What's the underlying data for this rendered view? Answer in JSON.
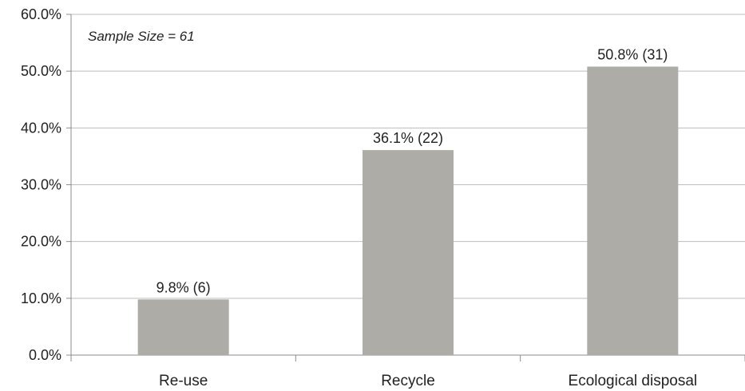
{
  "chart_data": {
    "type": "bar",
    "categories": [
      "Re-use",
      "Recycle",
      "Ecological disposal"
    ],
    "values": [
      9.8,
      36.1,
      50.8
    ],
    "data_labels": [
      "9.8% (6)",
      "36.1% (22)",
      "50.8% (31)"
    ],
    "ylim": [
      0,
      60
    ],
    "yticks": [
      0,
      10,
      20,
      30,
      40,
      50,
      60
    ],
    "ytick_labels": [
      "0.0%",
      "10.0%",
      "20.0%",
      "30.0%",
      "40.0%",
      "50.0%",
      "60.0%"
    ],
    "annotation": "Sample Size = 61",
    "grid": true,
    "title": "",
    "xlabel": "",
    "ylabel": "",
    "colors": {
      "bar": "#aeaca6",
      "grid": "#bdbdbd",
      "axis": "#8c8c8c",
      "text": "#222222"
    }
  }
}
